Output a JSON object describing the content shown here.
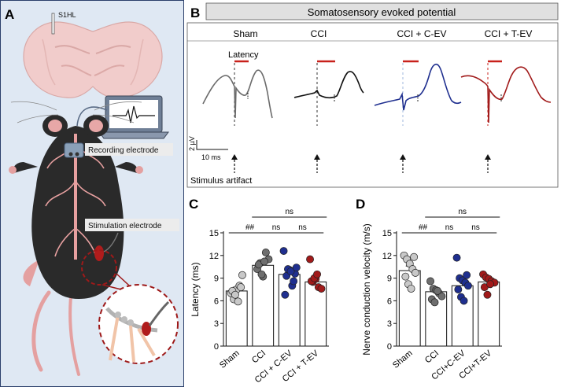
{
  "panels": {
    "a": {
      "letter": "A",
      "brain_label": "S1HL",
      "recording_label": "Recording electrode",
      "stimulation_label": "Stimulation electrode"
    },
    "b": {
      "letter": "B",
      "title": "Somatosensory evoked potential",
      "groups": [
        "Sham",
        "CCI",
        "CCI + C-EV",
        "CCI + T-EV"
      ],
      "trace_colors": [
        "#6b6b6b",
        "#111111",
        "#1f2f8f",
        "#a11a1a"
      ],
      "latency_label": "Latency",
      "scale_y": "2 µV",
      "scale_x": "10 ms",
      "artifact_label": "Stimulus artifact"
    },
    "c": {
      "letter": "C"
    },
    "d": {
      "letter": "D"
    }
  },
  "chart_data": [
    {
      "type": "bar",
      "panel": "C",
      "ylabel": "Latency (ms)",
      "categories": [
        "Sham",
        "CCI",
        "CCI + C-EV",
        "CCI + T-EV"
      ],
      "values": [
        7.3,
        10.7,
        9.5,
        8.5
      ],
      "errors": [
        0.5,
        0.5,
        0.9,
        0.6
      ],
      "ylim": [
        0,
        15
      ],
      "yticks": [
        0,
        3,
        6,
        9,
        12,
        15
      ],
      "colors": [
        "#c8c8c8",
        "#6e6e6e",
        "#1f2f8f",
        "#a11a1a"
      ],
      "points": [
        [
          7.0,
          6.2,
          7.5,
          8.0,
          9.4,
          7.3,
          6.8,
          5.9,
          7.8
        ],
        [
          10.2,
          11.0,
          9.2,
          12.4,
          11.5,
          10.8,
          9.5,
          11.2
        ],
        [
          12.6,
          9.3,
          10.1,
          8.0,
          9.6,
          6.8,
          10.2,
          9.9,
          8.6,
          10.4
        ],
        [
          11.5,
          8.5,
          8.9,
          7.8,
          7.6,
          8.6,
          9.0,
          9.5
        ]
      ],
      "brackets": [
        {
          "from": 0,
          "to": 1,
          "label": "##",
          "level": 1
        },
        {
          "from": 1,
          "to": 2,
          "label": "ns",
          "level": 1
        },
        {
          "from": 2,
          "to": 3,
          "label": "ns",
          "level": 1
        },
        {
          "from": 1,
          "to": 3,
          "label": "ns",
          "level": 2
        }
      ]
    },
    {
      "type": "bar",
      "panel": "D",
      "ylabel": "Nerve conduction velocity (m/s)",
      "categories": [
        "Sham",
        "CCI",
        "CCI+C-EV",
        "CCI+T-EV"
      ],
      "values": [
        10.0,
        7.2,
        8.0,
        8.5
      ],
      "errors": [
        0.6,
        0.5,
        0.7,
        0.5
      ],
      "ylim": [
        0,
        15
      ],
      "yticks": [
        0,
        3,
        6,
        9,
        12,
        15
      ],
      "colors": [
        "#c8c8c8",
        "#6e6e6e",
        "#1f2f8f",
        "#a11a1a"
      ],
      "points": [
        [
          12.0,
          11.5,
          10.9,
          10.2,
          9.7,
          9.2,
          8.2,
          7.6,
          11.8
        ],
        [
          8.6,
          7.6,
          7.4,
          7.0,
          6.6,
          6.2,
          5.8,
          7.3
        ],
        [
          11.7,
          9.0,
          8.7,
          8.4,
          8.0,
          7.5,
          6.5,
          6.0,
          9.4
        ],
        [
          9.5,
          9.1,
          8.9,
          8.6,
          8.4,
          7.8,
          6.8,
          8.2
        ]
      ],
      "brackets": [
        {
          "from": 0,
          "to": 1,
          "label": "##",
          "level": 1
        },
        {
          "from": 1,
          "to": 2,
          "label": "ns",
          "level": 1
        },
        {
          "from": 2,
          "to": 3,
          "label": "ns",
          "level": 1
        },
        {
          "from": 1,
          "to": 3,
          "label": "ns",
          "level": 2
        }
      ]
    }
  ]
}
